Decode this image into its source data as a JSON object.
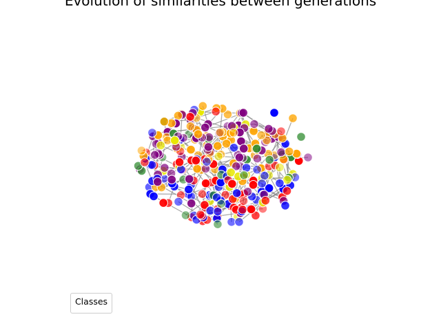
{
  "title": "Evolution of similarities between generations",
  "legend": {
    "title": "Classes"
  },
  "graph": {
    "node_colors": [
      "#ff0000",
      "#0000ff",
      "#ffa500",
      "#800080",
      "#2e8b2e",
      "#e8e800"
    ],
    "edge_color": "#888888",
    "node_count": 300,
    "edge_count": 320
  }
}
